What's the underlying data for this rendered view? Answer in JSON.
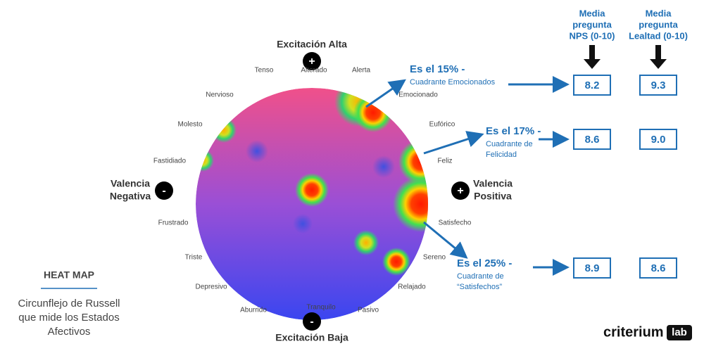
{
  "header": {
    "top_axis": "Excitación Alta",
    "bottom_axis": "Excitación Baja",
    "left_axis": [
      "Valencia",
      "Negativa"
    ],
    "right_axis": [
      "Valencia",
      "Positiva"
    ],
    "plus": "+",
    "minus": "-"
  },
  "emotions": [
    "Tenso",
    "Alterado",
    "Alerta",
    "Nervioso",
    "Emocionado",
    "Molesto",
    "Eufórico",
    "Fastidiado",
    "Feliz",
    "Frustrado",
    "Satisfecho",
    "Triste",
    "Sereno",
    "Depresivo",
    "Relajado",
    "Aburrido",
    "Tranquilo",
    "Pasivo"
  ],
  "callouts": [
    {
      "title": "Es el 15% -",
      "subtitle": [
        "Cuadrante Emocionados"
      ]
    },
    {
      "title": "Es el 17% -",
      "subtitle": [
        "Cuadrante de",
        "Felicidad"
      ]
    },
    {
      "title": "Es el 25% -",
      "subtitle": [
        "Cuadrante de",
        "“Satisfechos”"
      ]
    }
  ],
  "columns": [
    [
      "Media",
      "pregunta",
      "NPS (0-10)"
    ],
    [
      "Media",
      "pregunta",
      "Lealtad (0-10)"
    ]
  ],
  "table": {
    "rows": [
      [
        "8.2",
        "9.3"
      ],
      [
        "8.6",
        "9.0"
      ],
      [
        "8.9",
        "8.6"
      ]
    ]
  },
  "legend": {
    "title": "HEAT MAP",
    "description": [
      "Circunflejo de Russell",
      "que mide los Estados",
      "Afectivos"
    ]
  },
  "logo": {
    "brand": "criterium",
    "suffix": "lab"
  }
}
